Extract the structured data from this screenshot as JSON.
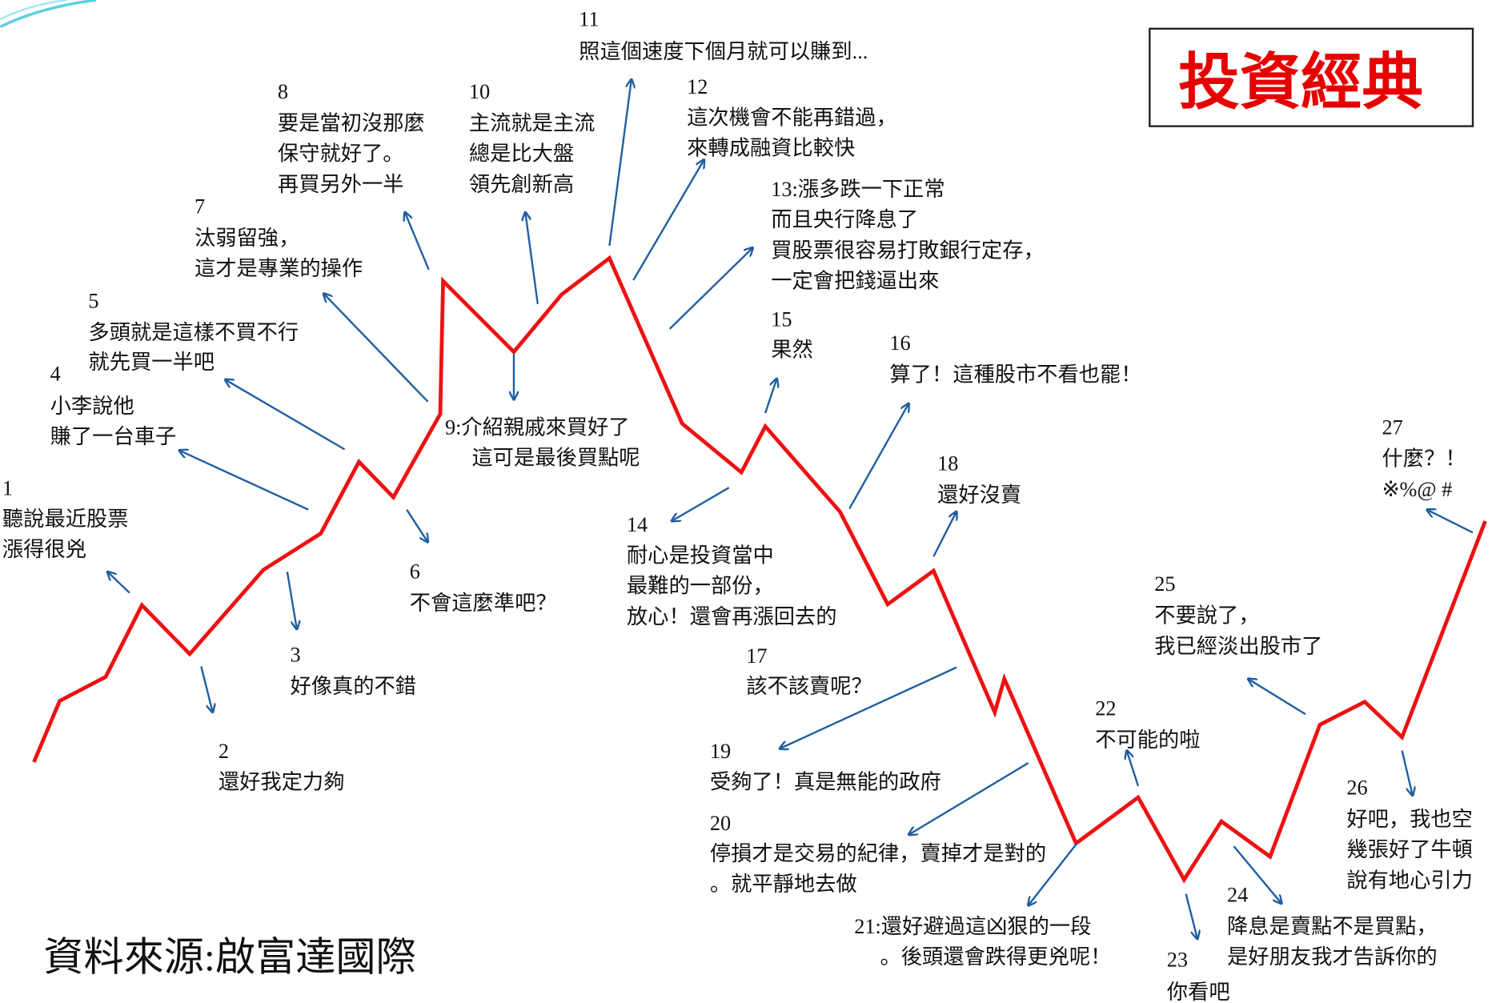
{
  "title": "投資經典",
  "source": "資料來源:啟富達國際",
  "notes": [
    {
      "number": "1",
      "lines": [
        "聽說最近股票",
        "漲得很兇"
      ]
    },
    {
      "number": "2",
      "lines": [
        "還好我定力夠"
      ]
    },
    {
      "number": "3",
      "lines": [
        "好像真的不錯"
      ]
    },
    {
      "number": "4",
      "lines": [
        "小李說他",
        "賺了一台車子"
      ]
    },
    {
      "number": "5",
      "lines": [
        "多頭就是這樣不買不行",
        "就先買一半吧"
      ]
    },
    {
      "number": "6",
      "lines": [
        "不會這麼準吧？"
      ]
    },
    {
      "number": "7",
      "lines": [
        "汰弱留強，",
        "這才是專業的操作"
      ]
    },
    {
      "number": "8",
      "lines": [
        "要是當初沒那麼",
        "保守就好了。",
        "再買另外一半"
      ]
    },
    {
      "lines": [
        "9:介紹親戚來買好了",
        "這可是最後買點呢"
      ]
    },
    {
      "number": "10",
      "lines": [
        "主流就是主流",
        "總是比大盤",
        "領先創新高"
      ]
    },
    {
      "number": "11",
      "lines": [
        "照這個速度下個月就可以賺到..."
      ]
    },
    {
      "number": "12",
      "lines": [
        "這次機會不能再錯過，",
        "來轉成融資比較快"
      ]
    },
    {
      "lines": [
        "13:漲多跌一下正常",
        "而且央行降息了",
        "買股票很容易打敗銀行定存，",
        "一定會把錢逼出來"
      ]
    },
    {
      "number": "14",
      "lines": [
        "耐心是投資當中",
        "最難的一部份，",
        "放心！還會再漲回去的"
      ]
    },
    {
      "number": "15",
      "lines": [
        "果然"
      ]
    },
    {
      "number": "16",
      "lines": [
        "算了！這種股市不看也罷！"
      ]
    },
    {
      "number": "17",
      "lines": [
        "該不該賣呢？"
      ]
    },
    {
      "number": "18",
      "lines": [
        "還好沒賣"
      ]
    },
    {
      "number": "19",
      "lines": [
        "受夠了！真是無能的政府"
      ]
    },
    {
      "number": "20",
      "lines": [
        "停損才是交易的紀律，賣掉才是對的",
        "。就平靜地去做"
      ]
    },
    {
      "lines": [
        "21:還好避過這凶狠的一段",
        "。後頭還會跌得更兇呢！"
      ]
    },
    {
      "number": "22",
      "lines": [
        "不可能的啦"
      ]
    },
    {
      "number": "23",
      "lines": [
        "你看吧"
      ]
    },
    {
      "number": "24",
      "lines": [
        "降息是賣點不是買點，",
        "是好朋友我才告訴你的"
      ]
    },
    {
      "number": "25",
      "lines": [
        "不要說了，",
        "我已經淡出股市了"
      ]
    },
    {
      "number": "26",
      "lines": [
        "好吧，我也空",
        "幾張好了牛頓",
        "說有地心引力"
      ]
    },
    {
      "number": "27",
      "lines": [
        "什麼？！",
        "※%@ #"
      ]
    }
  ]
}
